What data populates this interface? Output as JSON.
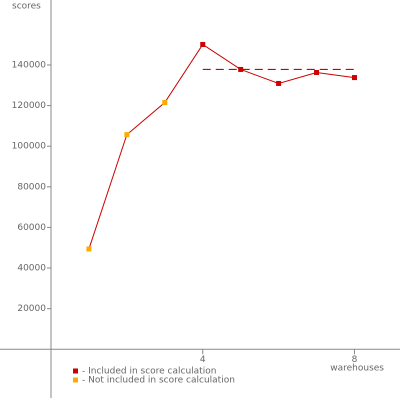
{
  "chart_data": {
    "type": "line",
    "y_label": "scores",
    "x_label": "warehouses",
    "x": [
      1,
      2,
      3,
      4,
      5,
      6,
      7,
      8
    ],
    "values": [
      49400,
      105700,
      121500,
      150100,
      137800,
      130900,
      136300,
      133800
    ],
    "line_color": "#cc0000",
    "point_colors": [
      "#ffaa00",
      "#ffaa00",
      "#ffaa00",
      "#cc0000",
      "#cc0000",
      "#cc0000",
      "#cc0000",
      "#cc0000"
    ],
    "score": {
      "value": 137800,
      "x": [
        4,
        8
      ],
      "color": "#cc0000"
    },
    "legend": [
      {
        "name": "- Included in score calculation",
        "color": "#cc0000"
      },
      {
        "name": "- Not included in score calculation",
        "color": "#ffaa00"
      }
    ],
    "xlim": [
      0,
      9.2
    ],
    "xticks": [
      4,
      8
    ],
    "ylim": [
      -24000,
      172000
    ],
    "yticks": [
      20000,
      40000,
      60000,
      80000,
      100000,
      120000,
      140000
    ]
  }
}
